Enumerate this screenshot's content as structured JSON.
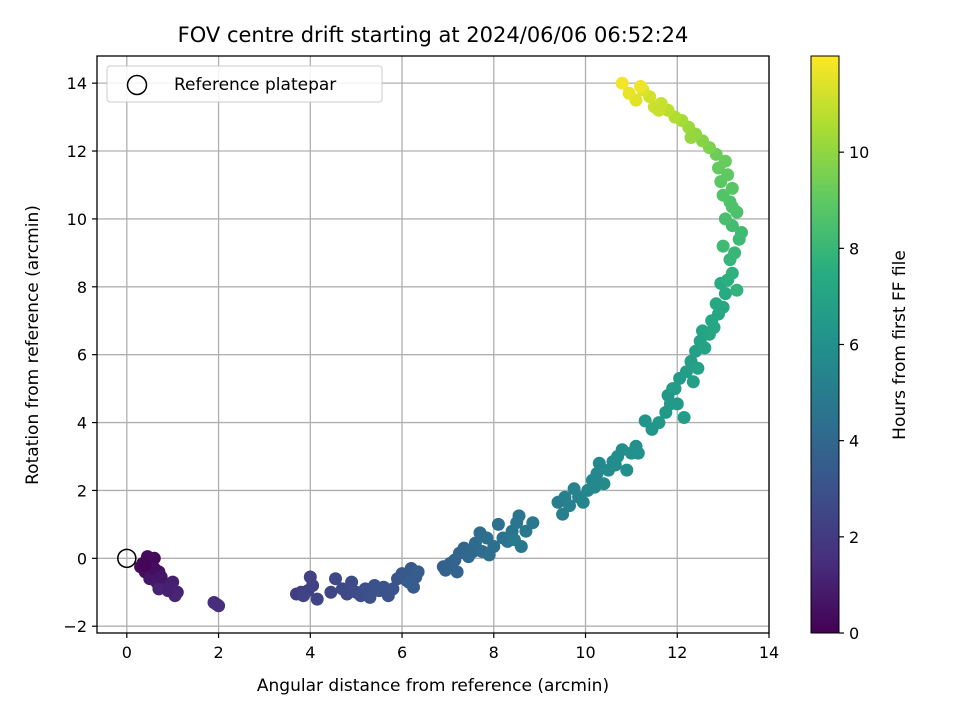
{
  "chart_data": {
    "type": "scatter",
    "title": "FOV centre drift starting at 2024/06/06 06:52:24",
    "xlabel": "Angular distance from reference (arcmin)",
    "ylabel": "Rotation from reference (arcmin)",
    "xlim": [
      -0.65,
      14.0
    ],
    "ylim": [
      -2.2,
      14.8
    ],
    "xticks": [
      0,
      2,
      4,
      6,
      8,
      10,
      12,
      14
    ],
    "yticks": [
      -2,
      0,
      2,
      4,
      6,
      8,
      10,
      12,
      14
    ],
    "grid": true,
    "legend": {
      "placement": "top-left",
      "entries": [
        "Reference platepar"
      ]
    },
    "reference_point": {
      "x": 0,
      "y": 0
    },
    "colorbar": {
      "label": "Hours from first FF file",
      "colormap": "viridis",
      "range": [
        0,
        12
      ],
      "ticks": [
        0,
        2,
        4,
        6,
        8,
        10
      ]
    },
    "points": [
      [
        0.35,
        -0.15,
        0.1
      ],
      [
        0.5,
        -0.1,
        0.2
      ],
      [
        0.6,
        0.0,
        0.25
      ],
      [
        0.45,
        0.05,
        0.3
      ],
      [
        0.3,
        -0.25,
        0.35
      ],
      [
        0.4,
        -0.4,
        0.45
      ],
      [
        0.55,
        -0.5,
        0.55
      ],
      [
        0.7,
        -0.4,
        0.6
      ],
      [
        0.5,
        -0.6,
        0.65
      ],
      [
        0.65,
        -0.7,
        0.75
      ],
      [
        0.8,
        -0.85,
        0.85
      ],
      [
        0.95,
        -0.8,
        0.95
      ],
      [
        1.0,
        -0.7,
        1.0
      ],
      [
        1.1,
        -1.0,
        1.1
      ],
      [
        0.7,
        -0.9,
        1.15
      ],
      [
        1.05,
        -1.1,
        1.2
      ],
      [
        0.6,
        -0.3,
        0.4
      ],
      [
        0.75,
        -0.55,
        0.7
      ],
      [
        0.9,
        -0.95,
        1.05
      ],
      [
        0.4,
        -0.2,
        0.15
      ],
      [
        1.95,
        -1.35,
        1.4
      ],
      [
        2.0,
        -1.4,
        1.5
      ],
      [
        1.9,
        -1.3,
        1.45
      ],
      [
        3.7,
        -1.05,
        2.1
      ],
      [
        3.8,
        -1.0,
        2.15
      ],
      [
        3.95,
        -0.95,
        2.2
      ],
      [
        4.0,
        -0.55,
        2.25
      ],
      [
        4.05,
        -0.8,
        2.3
      ],
      [
        4.15,
        -1.2,
        2.35
      ],
      [
        3.85,
        -1.1,
        2.4
      ],
      [
        4.45,
        -1.0,
        2.5
      ],
      [
        4.55,
        -0.6,
        2.55
      ],
      [
        4.7,
        -0.9,
        2.6
      ],
      [
        4.8,
        -1.05,
        2.65
      ],
      [
        4.9,
        -0.7,
        2.7
      ],
      [
        5.0,
        -1.0,
        2.75
      ],
      [
        5.1,
        -1.1,
        2.8
      ],
      [
        5.2,
        -0.9,
        2.85
      ],
      [
        5.3,
        -1.15,
        2.9
      ],
      [
        5.4,
        -0.8,
        2.95
      ],
      [
        5.5,
        -0.95,
        3.0
      ],
      [
        5.6,
        -0.85,
        3.05
      ],
      [
        5.7,
        -1.1,
        3.1
      ],
      [
        5.8,
        -0.9,
        3.15
      ],
      [
        5.9,
        -0.6,
        3.2
      ],
      [
        6.0,
        -0.45,
        3.25
      ],
      [
        6.1,
        -0.65,
        3.3
      ],
      [
        6.2,
        -0.3,
        3.35
      ],
      [
        6.3,
        -0.55,
        3.4
      ],
      [
        6.25,
        -0.85,
        3.45
      ],
      [
        6.35,
        -0.4,
        3.5
      ],
      [
        6.15,
        -0.7,
        3.55
      ],
      [
        6.9,
        -0.25,
        3.7
      ],
      [
        6.95,
        -0.35,
        3.75
      ],
      [
        7.05,
        -0.15,
        3.8
      ],
      [
        7.15,
        -0.05,
        3.85
      ],
      [
        7.2,
        -0.4,
        3.9
      ],
      [
        7.25,
        0.15,
        3.95
      ],
      [
        7.35,
        0.3,
        4.0
      ],
      [
        7.45,
        0.05,
        4.05
      ],
      [
        7.55,
        0.2,
        4.1
      ],
      [
        7.6,
        0.45,
        4.15
      ],
      [
        7.7,
        0.75,
        4.2
      ],
      [
        7.75,
        0.2,
        4.25
      ],
      [
        7.85,
        0.6,
        4.3
      ],
      [
        7.9,
        0.1,
        4.35
      ],
      [
        8.0,
        0.35,
        4.4
      ],
      [
        8.1,
        1.0,
        4.45
      ],
      [
        8.2,
        0.6,
        4.5
      ],
      [
        8.3,
        0.5,
        4.55
      ],
      [
        8.4,
        0.8,
        4.6
      ],
      [
        8.5,
        1.05,
        4.65
      ],
      [
        8.55,
        1.25,
        4.7
      ],
      [
        8.6,
        0.35,
        4.75
      ],
      [
        8.7,
        0.8,
        4.8
      ],
      [
        8.85,
        1.05,
        4.85
      ],
      [
        8.45,
        0.55,
        4.9
      ],
      [
        9.4,
        1.65,
        5.1
      ],
      [
        9.5,
        1.3,
        5.15
      ],
      [
        9.55,
        1.8,
        5.2
      ],
      [
        9.65,
        1.55,
        5.25
      ],
      [
        9.75,
        2.05,
        5.3
      ],
      [
        9.85,
        1.8,
        5.35
      ],
      [
        9.95,
        1.65,
        5.4
      ],
      [
        10.05,
        2.0,
        5.45
      ],
      [
        10.15,
        2.3,
        5.5
      ],
      [
        10.25,
        2.5,
        5.55
      ],
      [
        10.3,
        2.8,
        5.6
      ],
      [
        10.4,
        2.2,
        5.65
      ],
      [
        10.5,
        2.6,
        5.7
      ],
      [
        10.6,
        2.85,
        5.75
      ],
      [
        10.7,
        3.0,
        5.8
      ],
      [
        10.8,
        3.2,
        5.85
      ],
      [
        10.9,
        2.6,
        5.9
      ],
      [
        11.0,
        3.1,
        5.95
      ],
      [
        11.1,
        3.3,
        6.0
      ],
      [
        11.15,
        3.1,
        6.05
      ],
      [
        10.2,
        2.1,
        5.6
      ],
      [
        10.65,
        2.75,
        5.8
      ],
      [
        11.3,
        4.05,
        6.2
      ],
      [
        11.45,
        3.8,
        6.25
      ],
      [
        11.6,
        4.0,
        6.3
      ],
      [
        11.75,
        4.3,
        6.35
      ],
      [
        11.8,
        4.8,
        6.4
      ],
      [
        11.9,
        5.0,
        6.45
      ],
      [
        12.0,
        4.55,
        6.5
      ],
      [
        12.05,
        5.3,
        6.55
      ],
      [
        12.15,
        4.15,
        6.6
      ],
      [
        12.2,
        5.5,
        6.65
      ],
      [
        12.3,
        5.8,
        6.7
      ],
      [
        12.35,
        5.2,
        6.75
      ],
      [
        12.4,
        6.1,
        6.8
      ],
      [
        12.45,
        5.6,
        6.85
      ],
      [
        12.5,
        6.4,
        6.9
      ],
      [
        12.6,
        6.2,
        6.95
      ],
      [
        12.55,
        6.7,
        7.0
      ],
      [
        12.7,
        6.6,
        7.05
      ],
      [
        12.75,
        7.0,
        7.1
      ],
      [
        12.8,
        6.8,
        7.15
      ],
      [
        12.9,
        7.2,
        7.2
      ],
      [
        12.85,
        7.5,
        7.25
      ],
      [
        13.0,
        7.4,
        7.3
      ],
      [
        13.05,
        7.8,
        7.35
      ],
      [
        12.95,
        8.1,
        7.4
      ],
      [
        11.95,
        5.0,
        6.6
      ],
      [
        11.85,
        4.55,
        6.45
      ],
      [
        13.1,
        8.2,
        7.6
      ],
      [
        13.2,
        8.4,
        7.7
      ],
      [
        13.3,
        7.9,
        7.8
      ],
      [
        13.15,
        8.8,
        7.9
      ],
      [
        13.25,
        9.0,
        8.0
      ],
      [
        13.35,
        9.4,
        8.1
      ],
      [
        13.4,
        9.6,
        8.2
      ],
      [
        13.2,
        9.8,
        8.3
      ],
      [
        13.05,
        10.0,
        8.4
      ],
      [
        13.3,
        10.2,
        8.5
      ],
      [
        13.15,
        10.5,
        8.6
      ],
      [
        13.0,
        10.7,
        8.7
      ],
      [
        13.2,
        10.9,
        8.8
      ],
      [
        12.95,
        11.1,
        8.9
      ],
      [
        13.1,
        11.3,
        9.0
      ],
      [
        12.9,
        11.5,
        9.1
      ],
      [
        13.05,
        11.7,
        9.2
      ],
      [
        12.85,
        11.9,
        9.3
      ],
      [
        13.0,
        9.2,
        8.15
      ],
      [
        13.2,
        10.35,
        8.55
      ],
      [
        12.7,
        12.1,
        9.6
      ],
      [
        12.55,
        12.3,
        9.8
      ],
      [
        12.4,
        12.5,
        10.0
      ],
      [
        12.25,
        12.7,
        10.2
      ],
      [
        12.1,
        12.9,
        10.4
      ],
      [
        11.95,
        13.0,
        10.6
      ],
      [
        11.8,
        13.2,
        10.8
      ],
      [
        11.65,
        13.4,
        11.0
      ],
      [
        11.5,
        13.3,
        11.1
      ],
      [
        11.4,
        13.6,
        11.2
      ],
      [
        11.25,
        13.8,
        11.4
      ],
      [
        11.1,
        13.5,
        11.5
      ],
      [
        10.95,
        13.7,
        11.6
      ],
      [
        10.8,
        14.0,
        11.8
      ],
      [
        11.2,
        13.9,
        11.7
      ],
      [
        11.6,
        13.2,
        11.05
      ],
      [
        12.3,
        12.4,
        10.1
      ]
    ]
  }
}
